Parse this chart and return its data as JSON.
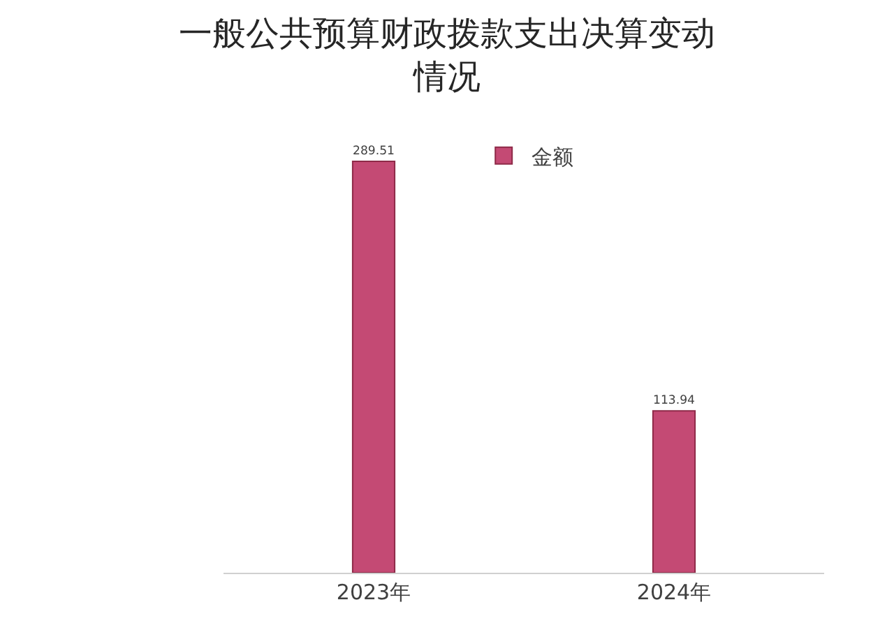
{
  "chart_data": {
    "type": "bar",
    "title": "一般公共预算财政拨款支出决算变动情况",
    "categories": [
      "2023年",
      "2024年"
    ],
    "series": [
      {
        "name": "金额",
        "color": "#c44a74",
        "values": [
          289.51,
          113.94
        ]
      }
    ],
    "data_labels": true,
    "legend": "top",
    "tick_labels": "x"
  }
}
